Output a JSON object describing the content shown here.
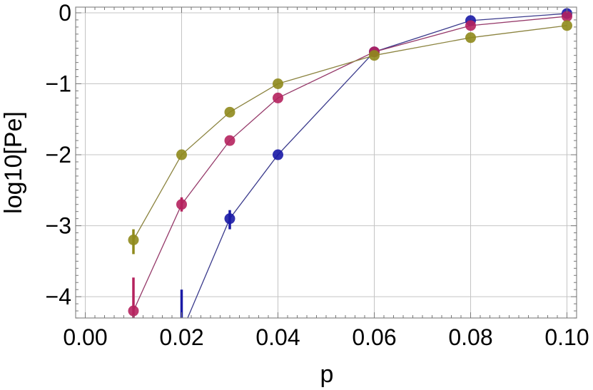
{
  "chart_data": {
    "type": "line",
    "title": "",
    "xlabel": "p",
    "ylabel": "log10[Pe]",
    "xlim": [
      -0.002,
      0.102
    ],
    "ylim": [
      -4.3,
      0.08
    ],
    "grid": true,
    "x_ticks": [
      0.0,
      0.02,
      0.04,
      0.06,
      0.08,
      0.1
    ],
    "x_tick_labels": [
      "0.00",
      "0.02",
      "0.04",
      "0.06",
      "0.08",
      "0.10"
    ],
    "y_ticks": [
      0,
      -1,
      -2,
      -3,
      -4
    ],
    "y_tick_labels": [
      "0",
      "−1",
      "−2",
      "−3",
      "−4"
    ],
    "series": [
      {
        "color": "#1a1aa6",
        "line_color": "#3a3a8c",
        "x": [
          0.02,
          0.03,
          0.04,
          0.06,
          0.08,
          0.1
        ],
        "y": [
          -4.5,
          -2.9,
          -2.0,
          -0.55,
          -0.11,
          -0.01
        ],
        "error_low": [
          -4.3,
          -3.05,
          -2.0,
          -0.58,
          -0.13,
          -0.05
        ],
        "error_high": [
          -3.9,
          -2.78,
          -2.0,
          -0.52,
          -0.1,
          0.02
        ]
      },
      {
        "color": "#b5225e",
        "line_color": "#963a6a",
        "x": [
          0.01,
          0.02,
          0.03,
          0.04,
          0.06,
          0.08,
          0.1
        ],
        "y": [
          -4.2,
          -2.7,
          -1.8,
          -1.2,
          -0.55,
          -0.18,
          -0.05
        ],
        "error_low": [
          -4.3,
          -2.8,
          -1.8,
          -1.2,
          -0.55,
          -0.18,
          -0.05
        ],
        "error_high": [
          -3.73,
          -2.6,
          -1.8,
          -1.2,
          -0.55,
          -0.18,
          -0.05
        ]
      },
      {
        "color": "#8f8a1c",
        "line_color": "#8c8440",
        "x": [
          0.01,
          0.02,
          0.03,
          0.04,
          0.06,
          0.08,
          0.1
        ],
        "y": [
          -3.2,
          -2.0,
          -1.4,
          -1.0,
          -0.6,
          -0.35,
          -0.18
        ],
        "error_low": [
          -3.4,
          -2.0,
          -1.4,
          -1.0,
          -0.6,
          -0.35,
          -0.18
        ],
        "error_high": [
          -3.05,
          -2.0,
          -1.4,
          -1.0,
          -0.6,
          -0.35,
          -0.18
        ]
      }
    ]
  }
}
